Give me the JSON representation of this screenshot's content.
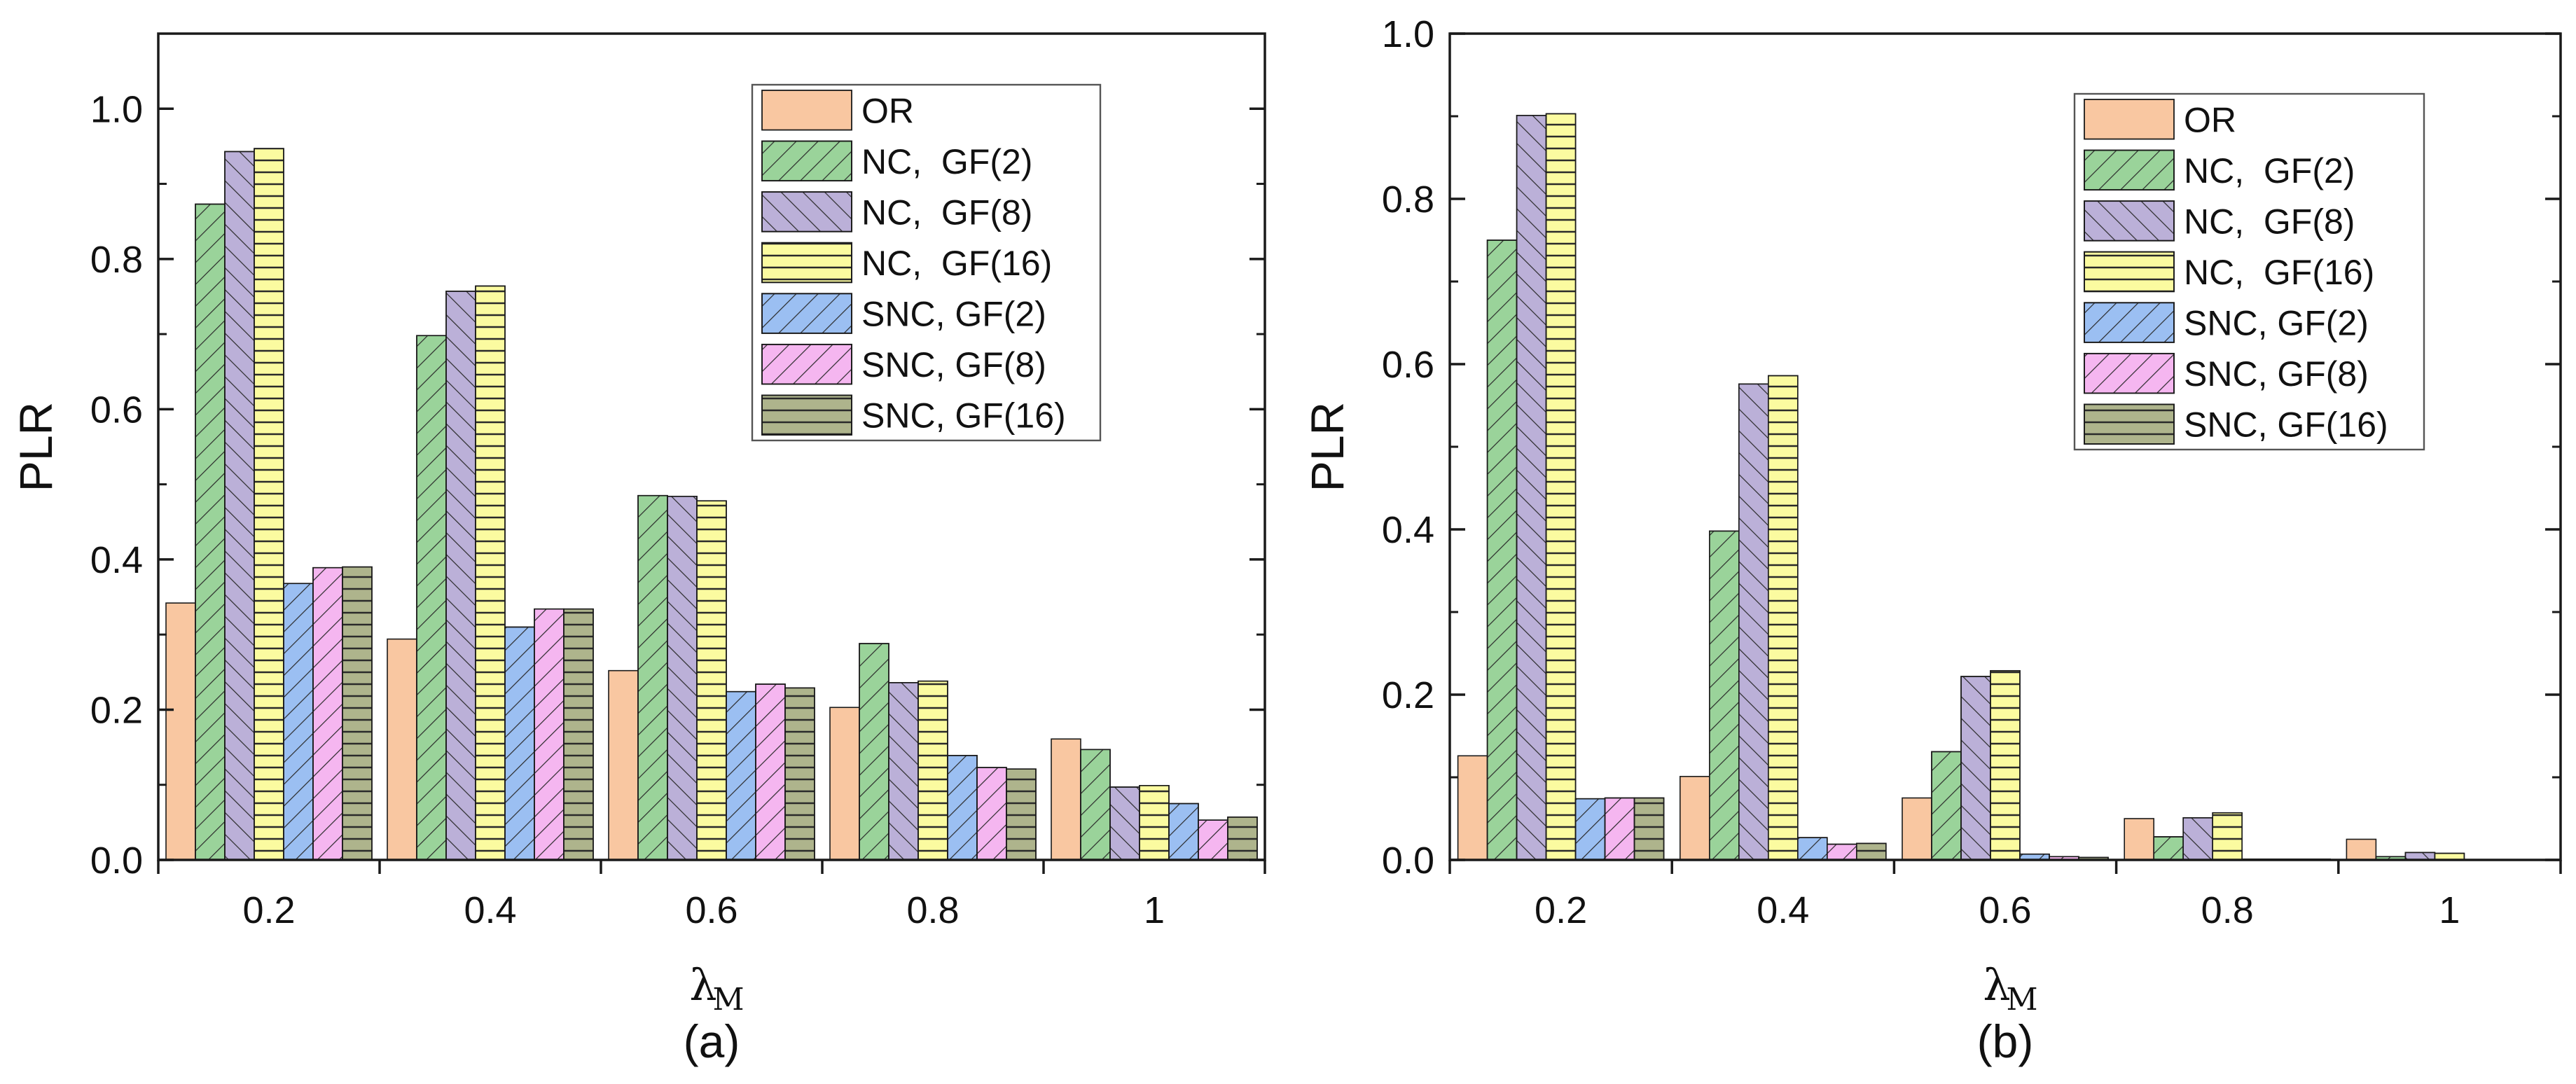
{
  "chart_data": [
    {
      "type": "bar",
      "panel_label": "(a)",
      "categories": [
        "0.2",
        "0.4",
        "0.6",
        "0.8",
        "1"
      ],
      "xlabel_main": "λ",
      "xlabel_sub": "M",
      "ylabel": "PLR",
      "ylim": [
        0,
        1.1
      ],
      "yticks": [
        "0.0",
        "0.2",
        "0.4",
        "0.6",
        "0.8",
        "1.0"
      ],
      "legend_position": "top-right",
      "series": [
        {
          "name": "OR",
          "values": [
            0.342,
            0.294,
            0.252,
            0.203,
            0.161
          ]
        },
        {
          "name": "NC,  GF(2)",
          "values": [
            0.873,
            0.698,
            0.485,
            0.288,
            0.147
          ]
        },
        {
          "name": "NC,  GF(8)",
          "values": [
            0.943,
            0.757,
            0.484,
            0.236,
            0.097
          ]
        },
        {
          "name": "NC,  GF(16)",
          "values": [
            0.947,
            0.764,
            0.478,
            0.238,
            0.099
          ]
        },
        {
          "name": "SNC, GF(2)",
          "values": [
            0.368,
            0.31,
            0.224,
            0.139,
            0.075
          ]
        },
        {
          "name": "SNC, GF(8)",
          "values": [
            0.389,
            0.334,
            0.234,
            0.123,
            0.053
          ]
        },
        {
          "name": "SNC, GF(16)",
          "values": [
            0.39,
            0.334,
            0.229,
            0.121,
            0.057
          ]
        }
      ]
    },
    {
      "type": "bar",
      "panel_label": "(b)",
      "categories": [
        "0.2",
        "0.4",
        "0.6",
        "0.8",
        "1"
      ],
      "xlabel_main": "λ",
      "xlabel_sub": "M",
      "ylabel": "PLR",
      "ylim": [
        0,
        1.0
      ],
      "yticks": [
        "0.0",
        "0.2",
        "0.4",
        "0.6",
        "0.8",
        "1.0"
      ],
      "legend_position": "top-right",
      "series": [
        {
          "name": "OR",
          "values": [
            0.126,
            0.101,
            0.075,
            0.05,
            0.025
          ]
        },
        {
          "name": "NC,  GF(2)",
          "values": [
            0.75,
            0.398,
            0.131,
            0.028,
            0.004
          ]
        },
        {
          "name": "NC,  GF(8)",
          "values": [
            0.901,
            0.576,
            0.222,
            0.051,
            0.009
          ]
        },
        {
          "name": "NC,  GF(16)",
          "values": [
            0.903,
            0.586,
            0.229,
            0.057,
            0.008
          ]
        },
        {
          "name": "SNC, GF(2)",
          "values": [
            0.074,
            0.027,
            0.007,
            0.001,
            0.0
          ]
        },
        {
          "name": "SNC, GF(8)",
          "values": [
            0.075,
            0.019,
            0.004,
            0.001,
            0.0
          ]
        },
        {
          "name": "SNC, GF(16)",
          "values": [
            0.075,
            0.02,
            0.003,
            0.001,
            0.0
          ]
        }
      ]
    }
  ],
  "colors": {
    "OR": "#f9c7a1",
    "NC_GF2": "#9ad39a",
    "NC_GF8": "#bbb0d8",
    "NC_GF16": "#fbfba0",
    "SNC_GF2": "#9bbff2",
    "SNC_GF8": "#f5b6f0",
    "SNC_GF16": "#aeb48c"
  },
  "patterns": [
    "none",
    "diag-down",
    "diag-up",
    "horizontal",
    "diag-down",
    "diag-down",
    "horizontal"
  ]
}
